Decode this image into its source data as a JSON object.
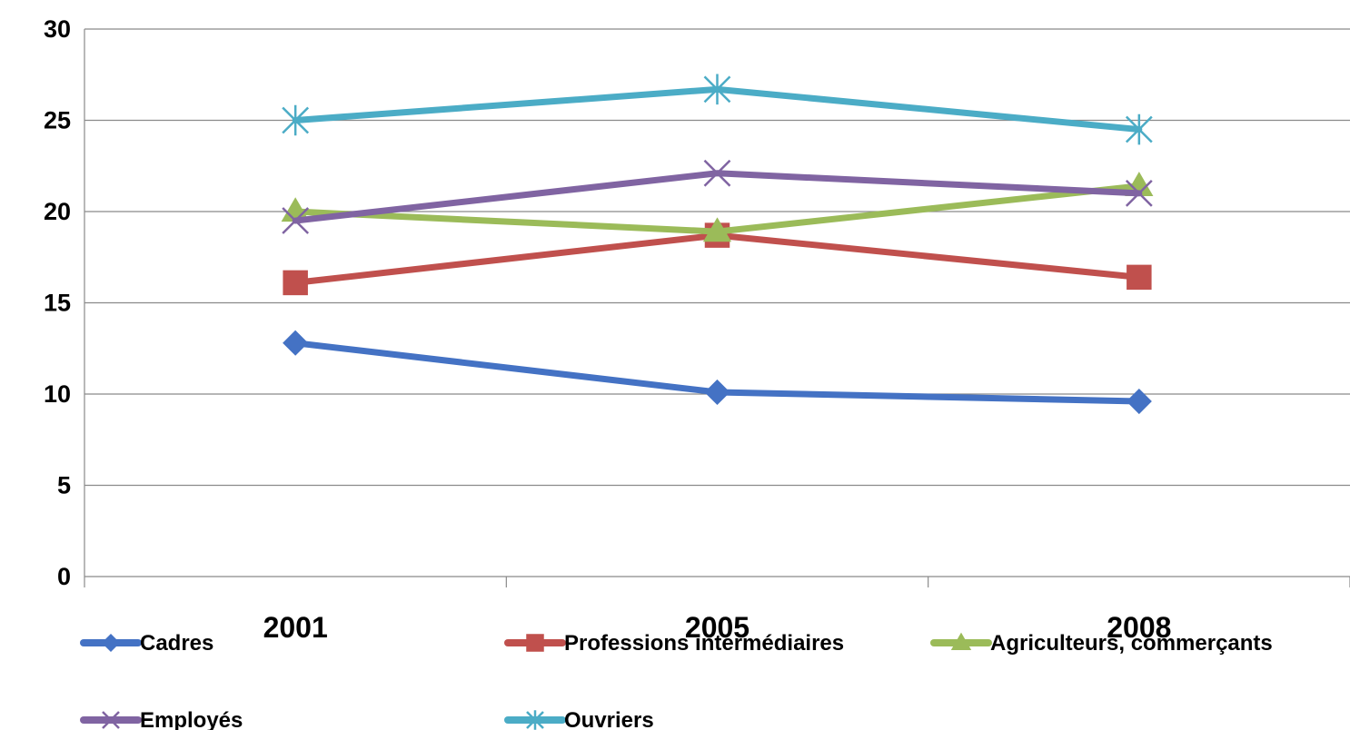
{
  "chart_data": {
    "type": "line",
    "title": "",
    "xlabel": "",
    "ylabel": "",
    "categories": [
      "2001",
      "2005",
      "2008"
    ],
    "ylim": [
      0,
      30
    ],
    "yticks": [
      0,
      5,
      10,
      15,
      20,
      25,
      30
    ],
    "grid": true,
    "legend_position": "bottom",
    "series": [
      {
        "name": "Cadres",
        "values": [
          12.8,
          10.1,
          9.6
        ],
        "color": "#4472C4",
        "marker": "diamond"
      },
      {
        "name": "Professions intermédiaires",
        "values": [
          16.1,
          18.7,
          16.4
        ],
        "color": "#C0504D",
        "marker": "square"
      },
      {
        "name": "Agriculteurs, commerçants",
        "values": [
          20.0,
          18.9,
          21.4
        ],
        "color": "#9BBB59",
        "marker": "triangle"
      },
      {
        "name": "Employés",
        "values": [
          19.5,
          22.1,
          21.0
        ],
        "color": "#8064A2",
        "marker": "x"
      },
      {
        "name": "Ouvriers",
        "values": [
          25.0,
          26.7,
          24.5
        ],
        "color": "#4BACC6",
        "marker": "star"
      }
    ]
  }
}
